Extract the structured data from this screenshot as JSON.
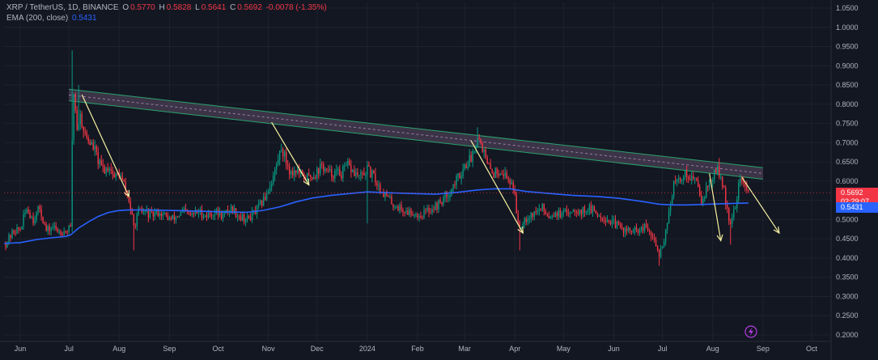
{
  "header": {
    "symbol": "XRP / TetherUS, 1D, BINANCE",
    "open_label": "O",
    "open": "0.5770",
    "high_label": "H",
    "high": "0.5828",
    "low_label": "L",
    "low": "0.5641",
    "close_label": "C",
    "close": "0.5692",
    "change": "-0.0078 (-1.35%)",
    "ema_label": "EMA (200, close)",
    "ema_value": "0.5431"
  },
  "tags": {
    "last_price": "0.5692",
    "countdown": "02:29:07",
    "ema_price": "0.5431"
  },
  "colors": {
    "background": "#131722",
    "up": "#089981",
    "down": "#f23645",
    "ema": "#2962ff",
    "channel_fill": "#4a3f54",
    "channel_edge": "#2aa36b",
    "arrow": "#f5f0a0",
    "grid": "#1e222d",
    "axis_text": "#b2b5be"
  },
  "icons": {
    "flash": "lightning-icon"
  },
  "chart_data": {
    "type": "candlestick",
    "symbol": "XRP / TetherUS",
    "timeframe": "1D",
    "ylim": [
      0.18,
      1.055
    ],
    "y_ticks": [
      1.05,
      1.0,
      0.95,
      0.9,
      0.85,
      0.8,
      0.75,
      0.7,
      0.65,
      0.6,
      0.55,
      0.5,
      0.45,
      0.4,
      0.35,
      0.3,
      0.25,
      0.2
    ],
    "y_tick_labels": [
      "1.0500",
      "1.0000",
      "0.9500",
      "0.9000",
      "0.8500",
      "0.8000",
      "0.7500",
      "0.7000",
      "0.6500",
      "0.6000",
      "0.5500",
      "0.5000",
      "0.4500",
      "0.4000",
      "0.3500",
      "0.3000",
      "0.2500",
      "0.2000"
    ],
    "x_labels": [
      "Jun",
      "Jul",
      "Aug",
      "Sep",
      "Oct",
      "Nov",
      "Dec",
      "2024",
      "Feb",
      "Mar",
      "Apr",
      "May",
      "Jun",
      "Jul",
      "Aug",
      "Sep",
      "Oct"
    ],
    "x_label_index": [
      0,
      30,
      61,
      92,
      122,
      153,
      183,
      214,
      245,
      274,
      305,
      335,
      366,
      396,
      427,
      458,
      488
    ],
    "x_first_index": -10,
    "x_last_index": 500,
    "close_path": [
      [
        -9,
        0.438
      ],
      [
        -4,
        0.47
      ],
      [
        0,
        0.475
      ],
      [
        4,
        0.53
      ],
      [
        8,
        0.5
      ],
      [
        12,
        0.53
      ],
      [
        16,
        0.47
      ],
      [
        20,
        0.48
      ],
      [
        24,
        0.47
      ],
      [
        28,
        0.47
      ],
      [
        30,
        0.476
      ],
      [
        31,
        0.475
      ],
      [
        32,
        0.71
      ],
      [
        33,
        0.83
      ],
      [
        34,
        0.79
      ],
      [
        35,
        0.74
      ],
      [
        37,
        0.77
      ],
      [
        40,
        0.72
      ],
      [
        43,
        0.7
      ],
      [
        46,
        0.68
      ],
      [
        49,
        0.64
      ],
      [
        52,
        0.63
      ],
      [
        55,
        0.64
      ],
      [
        58,
        0.61
      ],
      [
        61,
        0.62
      ],
      [
        64,
        0.59
      ],
      [
        67,
        0.55
      ],
      [
        70,
        0.48
      ],
      [
        73,
        0.52
      ],
      [
        77,
        0.52
      ],
      [
        81,
        0.51
      ],
      [
        85,
        0.52
      ],
      [
        89,
        0.51
      ],
      [
        93,
        0.5
      ],
      [
        97,
        0.51
      ],
      [
        101,
        0.52
      ],
      [
        105,
        0.51
      ],
      [
        110,
        0.52
      ],
      [
        115,
        0.51
      ],
      [
        120,
        0.52
      ],
      [
        125,
        0.51
      ],
      [
        130,
        0.53
      ],
      [
        135,
        0.51
      ],
      [
        140,
        0.5
      ],
      [
        145,
        0.52
      ],
      [
        150,
        0.55
      ],
      [
        155,
        0.6
      ],
      [
        158,
        0.64
      ],
      [
        161,
        0.69
      ],
      [
        164,
        0.65
      ],
      [
        167,
        0.62
      ],
      [
        170,
        0.63
      ],
      [
        174,
        0.61
      ],
      [
        178,
        0.61
      ],
      [
        182,
        0.62
      ],
      [
        186,
        0.64
      ],
      [
        190,
        0.62
      ],
      [
        194,
        0.62
      ],
      [
        198,
        0.62
      ],
      [
        202,
        0.64
      ],
      [
        206,
        0.62
      ],
      [
        210,
        0.61
      ],
      [
        214,
        0.63
      ],
      [
        218,
        0.61
      ],
      [
        222,
        0.58
      ],
      [
        226,
        0.56
      ],
      [
        230,
        0.54
      ],
      [
        234,
        0.53
      ],
      [
        238,
        0.52
      ],
      [
        242,
        0.52
      ],
      [
        246,
        0.51
      ],
      [
        250,
        0.52
      ],
      [
        254,
        0.53
      ],
      [
        258,
        0.54
      ],
      [
        262,
        0.56
      ],
      [
        266,
        0.58
      ],
      [
        270,
        0.61
      ],
      [
        274,
        0.64
      ],
      [
        278,
        0.66
      ],
      [
        282,
        0.72
      ],
      [
        285,
        0.69
      ],
      [
        288,
        0.64
      ],
      [
        292,
        0.62
      ],
      [
        296,
        0.63
      ],
      [
        300,
        0.61
      ],
      [
        304,
        0.59
      ],
      [
        306,
        0.52
      ],
      [
        308,
        0.48
      ],
      [
        310,
        0.5
      ],
      [
        314,
        0.51
      ],
      [
        318,
        0.52
      ],
      [
        322,
        0.53
      ],
      [
        326,
        0.51
      ],
      [
        330,
        0.52
      ],
      [
        334,
        0.51
      ],
      [
        338,
        0.52
      ],
      [
        342,
        0.53
      ],
      [
        346,
        0.52
      ],
      [
        350,
        0.53
      ],
      [
        354,
        0.52
      ],
      [
        358,
        0.51
      ],
      [
        362,
        0.5
      ],
      [
        366,
        0.49
      ],
      [
        370,
        0.48
      ],
      [
        374,
        0.47
      ],
      [
        378,
        0.47
      ],
      [
        382,
        0.47
      ],
      [
        386,
        0.48
      ],
      [
        390,
        0.45
      ],
      [
        394,
        0.41
      ],
      [
        397,
        0.45
      ],
      [
        400,
        0.52
      ],
      [
        403,
        0.59
      ],
      [
        406,
        0.6
      ],
      [
        410,
        0.62
      ],
      [
        414,
        0.61
      ],
      [
        418,
        0.59
      ],
      [
        420,
        0.55
      ],
      [
        423,
        0.58
      ],
      [
        427,
        0.61
      ],
      [
        430,
        0.63
      ],
      [
        432,
        0.61
      ],
      [
        434,
        0.57
      ],
      [
        436,
        0.53
      ],
      [
        438,
        0.48
      ],
      [
        440,
        0.52
      ],
      [
        442,
        0.56
      ],
      [
        444,
        0.61
      ],
      [
        446,
        0.59
      ],
      [
        449,
        0.57
      ]
    ],
    "ema_200": [
      [
        -10,
        0.438
      ],
      [
        0,
        0.44
      ],
      [
        10,
        0.448
      ],
      [
        20,
        0.453
      ],
      [
        28,
        0.456
      ],
      [
        31,
        0.46
      ],
      [
        36,
        0.478
      ],
      [
        42,
        0.494
      ],
      [
        48,
        0.508
      ],
      [
        54,
        0.518
      ],
      [
        60,
        0.523
      ],
      [
        66,
        0.525
      ],
      [
        80,
        0.525
      ],
      [
        100,
        0.523
      ],
      [
        125,
        0.52
      ],
      [
        140,
        0.519
      ],
      [
        150,
        0.524
      ],
      [
        160,
        0.533
      ],
      [
        170,
        0.546
      ],
      [
        180,
        0.556
      ],
      [
        192,
        0.563
      ],
      [
        204,
        0.568
      ],
      [
        214,
        0.572
      ],
      [
        226,
        0.57
      ],
      [
        240,
        0.568
      ],
      [
        256,
        0.566
      ],
      [
        270,
        0.571
      ],
      [
        282,
        0.577
      ],
      [
        292,
        0.58
      ],
      [
        302,
        0.58
      ],
      [
        312,
        0.573
      ],
      [
        326,
        0.568
      ],
      [
        340,
        0.563
      ],
      [
        356,
        0.56
      ],
      [
        370,
        0.555
      ],
      [
        382,
        0.548
      ],
      [
        394,
        0.54
      ],
      [
        402,
        0.538
      ],
      [
        412,
        0.538
      ],
      [
        424,
        0.54
      ],
      [
        440,
        0.542
      ],
      [
        449,
        0.5431
      ]
    ],
    "resistance_channel": {
      "start": [
        30,
        0.824
      ],
      "end": [
        458,
        0.62
      ],
      "width": 0.03
    },
    "arrows": [
      {
        "from": [
          38,
          0.825
        ],
        "to": [
          67,
          0.56
        ]
      },
      {
        "from": [
          155,
          0.753
        ],
        "to": [
          178,
          0.59
        ]
      },
      {
        "from": [
          278,
          0.705
        ],
        "to": [
          310,
          0.465
        ]
      },
      {
        "from": [
          425,
          0.62
        ],
        "to": [
          432,
          0.445
        ]
      },
      {
        "from": [
          445,
          0.61
        ],
        "to": [
          468,
          0.465
        ]
      }
    ],
    "last_price": 0.5692,
    "ema_value": 0.5431
  }
}
